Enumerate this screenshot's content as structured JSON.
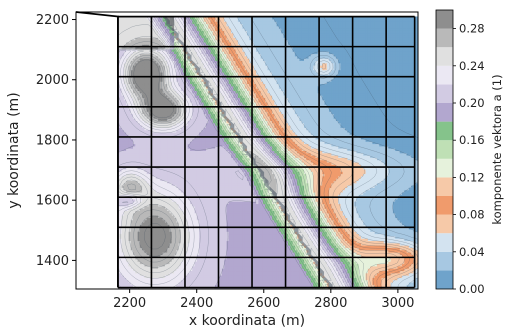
{
  "chart_data": {
    "type": "contour",
    "xlabel": "x koordinata (m)",
    "ylabel": "y koordinata (m)",
    "xlim": [
      2040,
      3060
    ],
    "ylim": [
      1305,
      2225
    ],
    "x_ticks": [
      2200,
      2400,
      2600,
      2800,
      3000
    ],
    "y_ticks": [
      1400,
      1600,
      1800,
      2000,
      2200
    ],
    "colorbar": {
      "label": "komponente vektora a (1)",
      "ticks": [
        "0.00",
        "0.04",
        "0.08",
        "0.12",
        "0.16",
        "0.20",
        "0.24",
        "0.28"
      ],
      "range": [
        0.0,
        0.3
      ],
      "levels": [
        {
          "from": 0.0,
          "to": 0.02,
          "color": "#6fa3cb"
        },
        {
          "from": 0.02,
          "to": 0.04,
          "color": "#a7c8e2"
        },
        {
          "from": 0.04,
          "to": 0.06,
          "color": "#d3e3f0"
        },
        {
          "from": 0.06,
          "to": 0.08,
          "color": "#f6c9a8"
        },
        {
          "from": 0.08,
          "to": 0.1,
          "color": "#f09b6c"
        },
        {
          "from": 0.1,
          "to": 0.12,
          "color": "#f6c9a8"
        },
        {
          "from": 0.12,
          "to": 0.14,
          "color": "#e6f2dc"
        },
        {
          "from": 0.14,
          "to": 0.16,
          "color": "#bfe0b5"
        },
        {
          "from": 0.16,
          "to": 0.18,
          "color": "#85c38b"
        },
        {
          "from": 0.18,
          "to": 0.2,
          "color": "#b2a7cf"
        },
        {
          "from": 0.2,
          "to": 0.22,
          "color": "#d2cbe3"
        },
        {
          "from": 0.22,
          "to": 0.24,
          "color": "#ebe8f3"
        },
        {
          "from": 0.24,
          "to": 0.26,
          "color": "#e0e0e0"
        },
        {
          "from": 0.26,
          "to": 0.28,
          "color": "#b9b9b9"
        },
        {
          "from": 0.28,
          "to": 0.3,
          "color": "#8e8e8e"
        }
      ]
    },
    "grid": {
      "x_lines": [
        2165,
        2265,
        2365,
        2465,
        2565,
        2665,
        2765,
        2865,
        2965,
        3050
      ],
      "y_lines": [
        1310,
        1410,
        1510,
        1610,
        1710,
        1810,
        1910,
        2010,
        2110,
        2210
      ]
    },
    "boundary": [
      [
        2040,
        2225
      ],
      [
        2165,
        2210
      ],
      [
        2165,
        1310
      ]
    ]
  }
}
